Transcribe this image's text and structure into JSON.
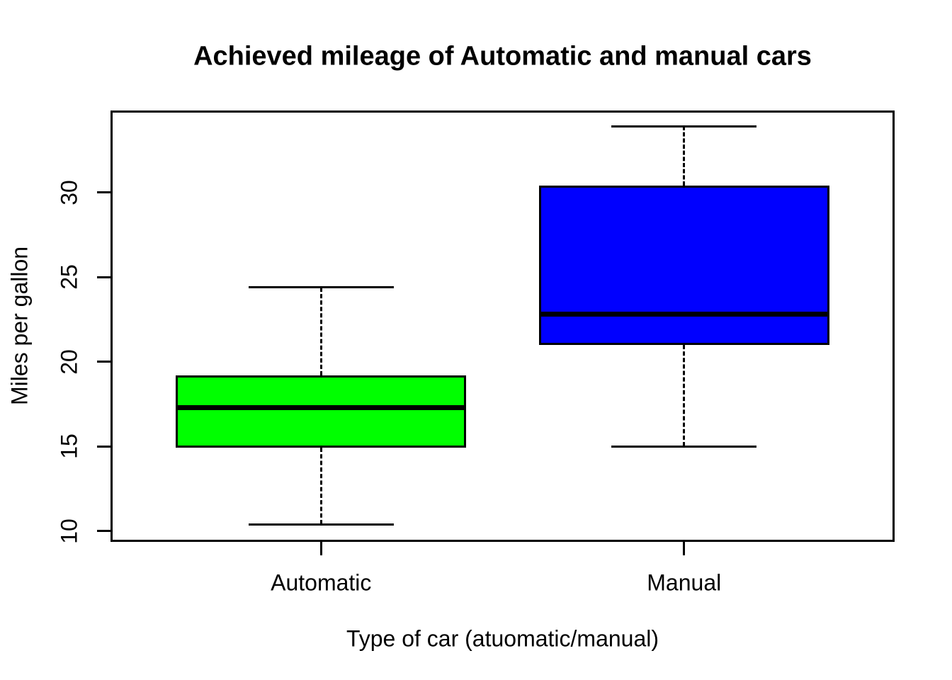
{
  "figure": {
    "background_color": "#ffffff",
    "foreground_color": "#000000"
  },
  "chart_data": {
    "type": "boxplot",
    "title": "Achieved mileage of Automatic and manual cars",
    "xlabel": "Type of car (atuomatic/manual)",
    "ylabel": "Miles per gallon",
    "categories": [
      "Automatic",
      "Manual"
    ],
    "series": [
      {
        "name": "Automatic",
        "x": 1,
        "min": 10.4,
        "q1": 14.95,
        "median": 17.3,
        "q3": 19.2,
        "max": 24.4,
        "fill": "#00ff00"
      },
      {
        "name": "Manual",
        "x": 2,
        "min": 15.0,
        "q1": 21.0,
        "median": 22.8,
        "q3": 30.4,
        "max": 33.9,
        "fill": "#0000ff"
      }
    ],
    "y_ticks": [
      10,
      15,
      20,
      25,
      30
    ],
    "ylim": [
      9.37,
      34.84
    ],
    "xlim": [
      0.42,
      2.58
    ],
    "boxwex": 0.8,
    "staple_ratio": 0.5,
    "grid": false,
    "legend": null,
    "box_border_color": "#000000",
    "median_color": "#000000",
    "whisker_style": "dashed"
  }
}
